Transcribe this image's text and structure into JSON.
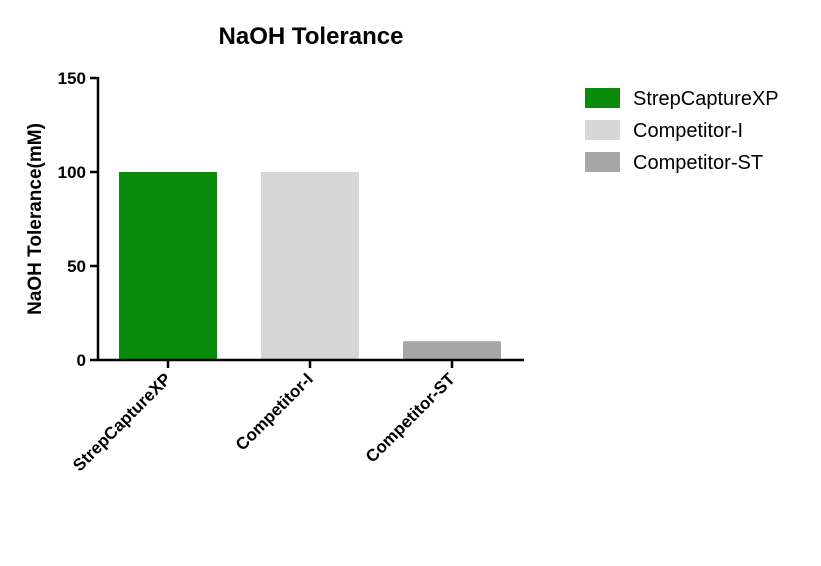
{
  "chart_data": {
    "type": "bar",
    "title": "NaOH Tolerance",
    "xlabel": "",
    "ylabel": "NaOH Tolerance(mM)",
    "ylim": [
      0,
      150
    ],
    "yticks": [
      0,
      50,
      100,
      150
    ],
    "categories": [
      "StrepCaptureXP",
      "Competitor-I",
      "Competitor-ST"
    ],
    "values": [
      100,
      100,
      10
    ],
    "colors": [
      "#0a8a0a",
      "#d6d6d6",
      "#a6a6a8"
    ],
    "grid": false,
    "legend": {
      "placement": "top-right",
      "entries": [
        "StrepCaptureXP",
        "Competitor-I",
        "Competitor-ST"
      ]
    }
  }
}
